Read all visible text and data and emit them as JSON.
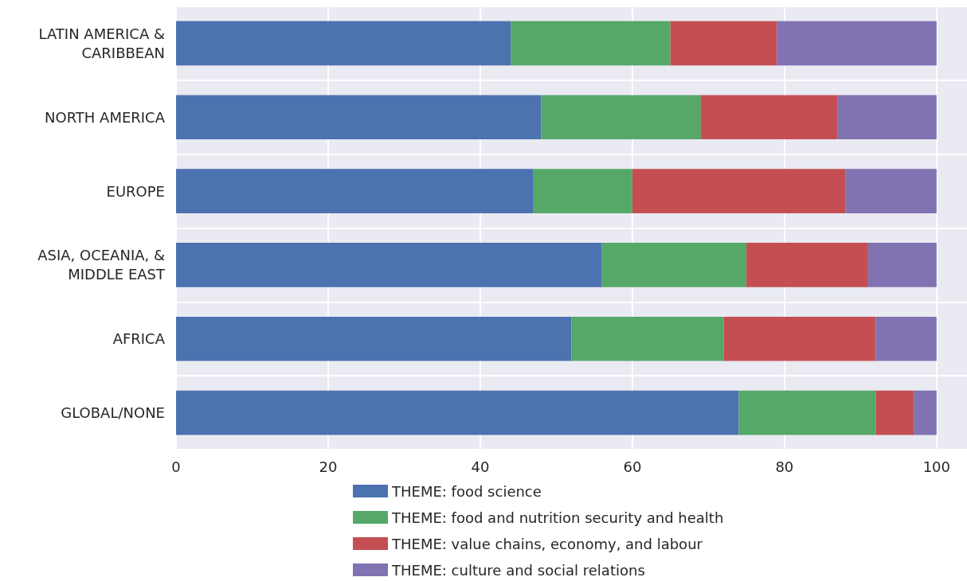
{
  "chart_data": {
    "type": "bar",
    "orientation": "horizontal",
    "stacked": true,
    "categories": [
      "LATIN AMERICA &\nCARIBBEAN",
      "NORTH AMERICA",
      "EUROPE",
      "ASIA, OCEANIA, &\nMIDDLE EAST",
      "AFRICA",
      "GLOBAL/NONE"
    ],
    "series": [
      {
        "name": "THEME: food science",
        "color": "#4c72b0",
        "values": [
          44,
          48,
          47,
          56,
          52,
          74
        ]
      },
      {
        "name": "THEME: food and nutrition security and health",
        "color": "#55a868",
        "values": [
          21,
          21,
          13,
          19,
          20,
          18
        ]
      },
      {
        "name": "THEME: value chains, economy, and labour",
        "color": "#c44e52",
        "values": [
          14,
          18,
          28,
          16,
          20,
          5
        ]
      },
      {
        "name": "THEME: culture and social relations",
        "color": "#8172b2",
        "values": [
          21,
          13,
          12,
          9,
          8,
          3
        ]
      }
    ],
    "xlim": [
      0,
      104
    ],
    "xticks": [
      0,
      20,
      40,
      60,
      80,
      100
    ],
    "grid": true,
    "legend": "bottom"
  }
}
